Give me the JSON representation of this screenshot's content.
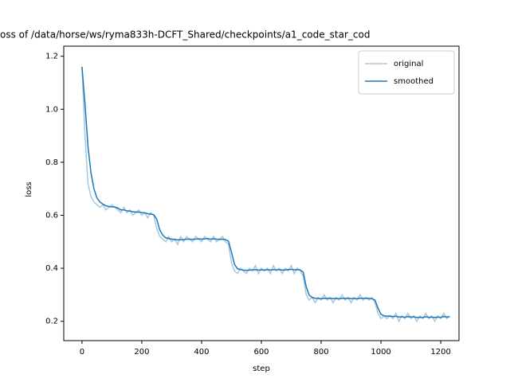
{
  "chart_data": {
    "type": "line",
    "title": "oss of /data/horse/ws/ryma833h-DCFT_Shared/checkpoints/a1_code_star_cod",
    "x_label": "step",
    "y_label": "loss",
    "x": [
      0,
      10,
      20,
      30,
      40,
      50,
      60,
      70,
      80,
      90,
      100,
      110,
      120,
      130,
      140,
      150,
      160,
      170,
      180,
      190,
      200,
      210,
      220,
      230,
      240,
      250,
      260,
      270,
      280,
      290,
      300,
      310,
      320,
      330,
      340,
      350,
      360,
      370,
      380,
      390,
      400,
      410,
      420,
      430,
      440,
      450,
      460,
      470,
      480,
      490,
      500,
      510,
      520,
      530,
      540,
      550,
      560,
      570,
      580,
      590,
      600,
      610,
      620,
      630,
      640,
      650,
      660,
      670,
      680,
      690,
      700,
      710,
      720,
      730,
      740,
      750,
      760,
      770,
      780,
      790,
      800,
      810,
      820,
      830,
      840,
      850,
      860,
      870,
      880,
      890,
      900,
      910,
      920,
      930,
      940,
      950,
      960,
      970,
      980,
      990,
      1000,
      1010,
      1020,
      1030,
      1040,
      1050,
      1060,
      1070,
      1080,
      1090,
      1100,
      1110,
      1120,
      1130,
      1140,
      1150,
      1160,
      1170,
      1180,
      1190,
      1200,
      1210,
      1220,
      1230
    ],
    "series": [
      {
        "name": "original",
        "color": "#a5c8e1",
        "width": 1.5,
        "values": [
          1.16,
          0.9,
          0.72,
          0.67,
          0.65,
          0.64,
          0.63,
          0.64,
          0.62,
          0.63,
          0.64,
          0.63,
          0.62,
          0.61,
          0.63,
          0.61,
          0.62,
          0.6,
          0.61,
          0.62,
          0.6,
          0.61,
          0.59,
          0.61,
          0.6,
          0.55,
          0.52,
          0.51,
          0.5,
          0.52,
          0.5,
          0.51,
          0.49,
          0.52,
          0.5,
          0.52,
          0.51,
          0.5,
          0.52,
          0.51,
          0.5,
          0.52,
          0.51,
          0.5,
          0.52,
          0.5,
          0.51,
          0.52,
          0.5,
          0.49,
          0.42,
          0.39,
          0.38,
          0.4,
          0.39,
          0.38,
          0.4,
          0.39,
          0.41,
          0.38,
          0.4,
          0.39,
          0.4,
          0.38,
          0.41,
          0.39,
          0.4,
          0.38,
          0.4,
          0.39,
          0.41,
          0.38,
          0.4,
          0.39,
          0.37,
          0.3,
          0.28,
          0.29,
          0.27,
          0.29,
          0.28,
          0.3,
          0.28,
          0.29,
          0.27,
          0.29,
          0.28,
          0.3,
          0.28,
          0.29,
          0.27,
          0.29,
          0.28,
          0.3,
          0.28,
          0.29,
          0.28,
          0.29,
          0.27,
          0.23,
          0.21,
          0.22,
          0.21,
          0.22,
          0.21,
          0.23,
          0.2,
          0.22,
          0.21,
          0.23,
          0.21,
          0.22,
          0.2,
          0.22,
          0.21,
          0.23,
          0.21,
          0.22,
          0.2,
          0.22,
          0.21,
          0.23,
          0.21,
          0.22
        ]
      },
      {
        "name": "smoothed",
        "color": "#1f77b4",
        "width": 1.5,
        "values": [
          1.16,
          1.02,
          0.86,
          0.76,
          0.7,
          0.665,
          0.65,
          0.642,
          0.636,
          0.633,
          0.632,
          0.631,
          0.627,
          0.62,
          0.62,
          0.617,
          0.616,
          0.613,
          0.612,
          0.612,
          0.61,
          0.609,
          0.606,
          0.604,
          0.602,
          0.585,
          0.545,
          0.525,
          0.515,
          0.512,
          0.51,
          0.509,
          0.507,
          0.508,
          0.508,
          0.51,
          0.51,
          0.509,
          0.51,
          0.511,
          0.51,
          0.511,
          0.512,
          0.51,
          0.511,
          0.51,
          0.509,
          0.51,
          0.508,
          0.502,
          0.46,
          0.415,
          0.398,
          0.395,
          0.393,
          0.392,
          0.393,
          0.394,
          0.395,
          0.393,
          0.394,
          0.393,
          0.395,
          0.393,
          0.395,
          0.394,
          0.395,
          0.393,
          0.394,
          0.395,
          0.396,
          0.394,
          0.395,
          0.394,
          0.385,
          0.33,
          0.298,
          0.29,
          0.287,
          0.286,
          0.285,
          0.287,
          0.286,
          0.287,
          0.285,
          0.286,
          0.285,
          0.287,
          0.286,
          0.287,
          0.285,
          0.286,
          0.285,
          0.287,
          0.286,
          0.287,
          0.286,
          0.285,
          0.28,
          0.25,
          0.226,
          0.221,
          0.219,
          0.22,
          0.218,
          0.219,
          0.216,
          0.217,
          0.215,
          0.218,
          0.216,
          0.217,
          0.214,
          0.215,
          0.214,
          0.217,
          0.215,
          0.216,
          0.214,
          0.216,
          0.215,
          0.218,
          0.216,
          0.217
        ]
      }
    ],
    "xlim": [
      -61,
      1261
    ],
    "xticks": [
      0,
      200,
      400,
      600,
      800,
      1000,
      1200
    ],
    "ylim": [
      0.127,
      1.238
    ],
    "yticks": [
      0.2,
      0.4,
      0.6,
      0.8,
      {
        "value": 1,
        "label": "1.0"
      },
      1.2
    ],
    "legend": "upper right"
  }
}
